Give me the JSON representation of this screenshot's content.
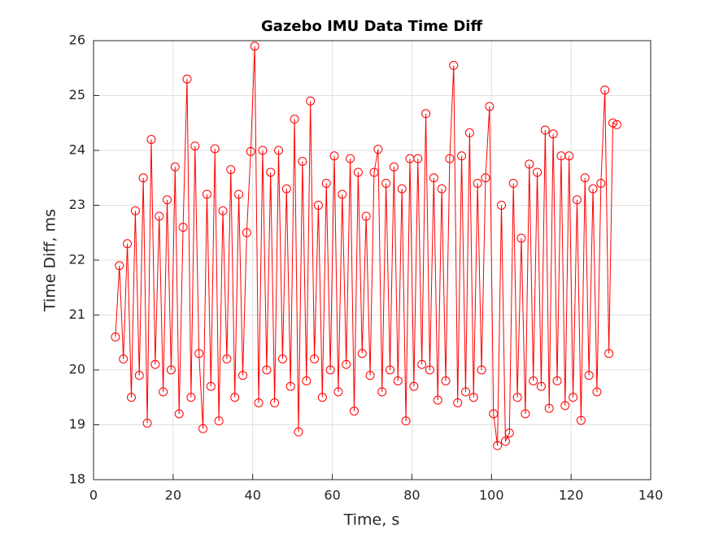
{
  "chart_data": {
    "type": "line",
    "title": "Gazebo IMU Data Time Diff",
    "xlabel": "Time, s",
    "ylabel": "Time Diff, ms",
    "xlim": [
      0,
      140
    ],
    "xticks": [
      0,
      20,
      40,
      60,
      80,
      100,
      120,
      140
    ],
    "ylim": [
      18,
      26
    ],
    "yticks": [
      18,
      19,
      20,
      21,
      22,
      23,
      24,
      25,
      26
    ],
    "grid": true,
    "marker": "circle",
    "series": [
      {
        "color": "#ff0000",
        "x": [
          5.5,
          6.5,
          7.5,
          8.5,
          9.5,
          10.5,
          11.5,
          12.5,
          13.5,
          14.5,
          15.5,
          16.5,
          17.5,
          18.5,
          19.5,
          20.5,
          21.5,
          22.5,
          23.5,
          24.5,
          25.5,
          26.5,
          27.5,
          28.5,
          29.5,
          30.5,
          31.5,
          32.5,
          33.5,
          34.5,
          35.5,
          36.5,
          37.5,
          38.5,
          39.5,
          40.5,
          41.5,
          42.5,
          43.5,
          44.5,
          45.5,
          46.5,
          47.5,
          48.5,
          49.5,
          50.5,
          51.5,
          52.5,
          53.5,
          54.5,
          55.5,
          56.5,
          57.5,
          58.5,
          59.5,
          60.5,
          61.5,
          62.5,
          63.5,
          64.5,
          65.5,
          66.5,
          67.5,
          68.5,
          69.5,
          70.5,
          71.5,
          72.5,
          73.5,
          74.5,
          75.5,
          76.5,
          77.5,
          78.5,
          79.5,
          80.5,
          81.5,
          82.5,
          83.5,
          84.5,
          85.5,
          86.5,
          87.5,
          88.5,
          89.5,
          90.5,
          91.5,
          92.5,
          93.5,
          94.5,
          95.5,
          96.5,
          97.5,
          98.5,
          99.5,
          100.5,
          101.5,
          102.5,
          103.5,
          104.5,
          105.5,
          106.5,
          107.5,
          108.5,
          109.5,
          110.5,
          111.5,
          112.5,
          113.5,
          114.5,
          115.5,
          116.5,
          117.5,
          118.5,
          119.5,
          120.5,
          121.5,
          122.5,
          123.5,
          124.5,
          125.5,
          126.5,
          127.5,
          128.5,
          129.5,
          130.5,
          131.5
        ],
        "values": [
          20.6,
          21.9,
          20.2,
          22.3,
          19.5,
          22.9,
          19.9,
          23.5,
          19.03,
          24.2,
          20.1,
          22.8,
          19.6,
          23.1,
          20.0,
          23.7,
          19.2,
          22.6,
          25.3,
          19.5,
          24.08,
          20.3,
          18.93,
          23.2,
          19.7,
          24.03,
          19.07,
          22.9,
          20.2,
          23.65,
          19.5,
          23.2,
          19.9,
          22.5,
          23.98,
          25.9,
          19.4,
          24.0,
          20.0,
          23.6,
          19.4,
          24.0,
          20.2,
          23.3,
          19.7,
          24.57,
          18.87,
          23.8,
          19.8,
          24.9,
          20.2,
          23.0,
          19.5,
          23.4,
          20.0,
          23.9,
          19.6,
          23.2,
          20.1,
          23.85,
          19.25,
          23.6,
          20.3,
          22.8,
          19.9,
          23.6,
          24.02,
          19.6,
          23.4,
          20.0,
          23.7,
          19.8,
          23.3,
          19.07,
          23.85,
          19.7,
          23.85,
          20.1,
          24.67,
          20.0,
          23.5,
          19.45,
          23.3,
          19.8,
          23.85,
          25.55,
          19.4,
          23.9,
          19.6,
          24.32,
          19.5,
          23.4,
          20.0,
          23.5,
          24.8,
          19.2,
          18.62,
          23.0,
          18.7,
          18.85,
          23.4,
          19.5,
          22.4,
          19.2,
          23.75,
          19.8,
          23.6,
          19.7,
          24.37,
          19.3,
          24.3,
          19.8,
          23.9,
          19.35,
          23.9,
          19.5,
          23.1,
          19.08,
          23.5,
          19.9,
          23.3,
          19.6,
          23.4,
          25.1,
          20.3,
          24.5,
          24.47
        ]
      }
    ]
  }
}
